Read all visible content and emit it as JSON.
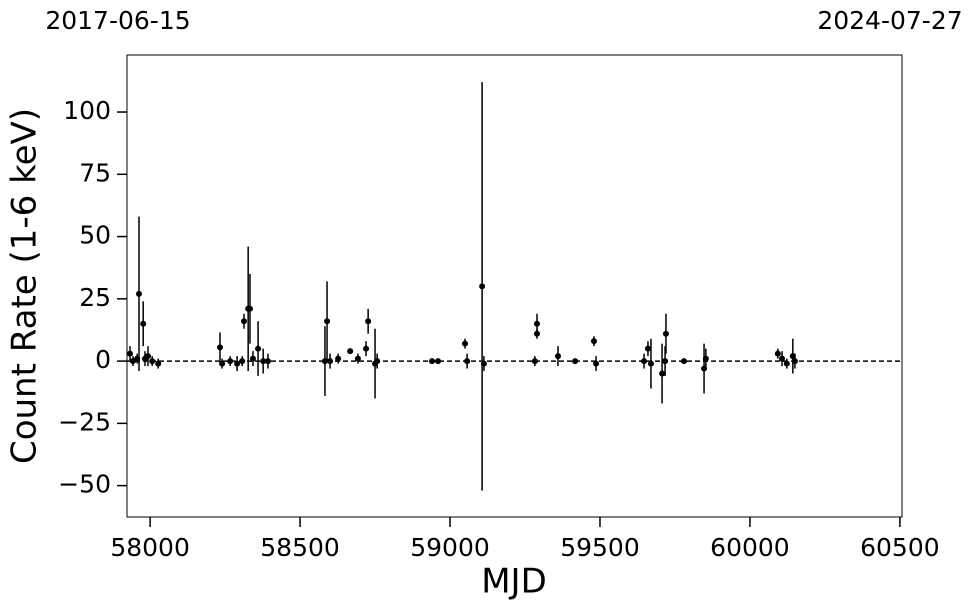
{
  "chart_data": {
    "type": "errorbar",
    "annotations": [
      "2017-06-15",
      "2024-07-27"
    ],
    "xlabel": "MJD",
    "ylabel": "Count Rate (1-6 keV)",
    "xlim": [
      57923,
      60507
    ],
    "ylim": [
      -62.6,
      122.9
    ],
    "xticks": [
      58000,
      58500,
      59000,
      59500,
      60000,
      60500
    ],
    "yticks": [
      {
        "value": -50,
        "label": "−50"
      },
      {
        "value": -25,
        "label": "−25"
      },
      0,
      25,
      50,
      75,
      100
    ],
    "hline": 0,
    "color": "#000000",
    "x": [
      57933,
      57943,
      57957,
      57963,
      57977,
      57983,
      57993,
      58007,
      58027,
      58233,
      58240,
      58267,
      58290,
      58307,
      58313,
      58327,
      58333,
      58343,
      58360,
      58377,
      58393,
      58583,
      58590,
      58600,
      58627,
      58667,
      58693,
      58720,
      58727,
      58750,
      58757,
      58940,
      58960,
      59050,
      59057,
      59107,
      59113,
      59283,
      59290,
      59290,
      59360,
      59417,
      59480,
      59487,
      59647,
      59660,
      59670,
      59707,
      59717,
      59720,
      59780,
      59847,
      59853,
      60093,
      60107,
      60123,
      60143,
      60150
    ],
    "values": [
      3,
      0,
      1,
      27,
      15,
      1,
      2,
      0,
      -1,
      5.5,
      -1,
      0,
      -1,
      0,
      16,
      21,
      21,
      1,
      5,
      0,
      0,
      0,
      16,
      0,
      1,
      4,
      1,
      5,
      16,
      -1,
      0,
      0,
      0,
      7,
      0,
      30,
      -1,
      0,
      11,
      15,
      2,
      0,
      8,
      -1,
      0,
      5,
      -1,
      -5,
      0,
      11,
      0,
      -3,
      1,
      3,
      1,
      -1,
      2,
      0
    ],
    "errors": [
      3,
      2,
      2,
      31,
      9,
      3,
      4,
      2,
      2,
      6,
      2,
      2,
      3,
      2,
      3,
      25,
      14,
      3,
      11,
      5,
      3,
      14,
      16,
      3,
      2,
      1,
      2,
      3,
      5,
      14,
      3,
      1,
      1,
      2,
      3,
      82,
      3,
      2,
      2,
      4,
      4,
      1,
      2,
      3,
      3,
      3,
      10,
      12,
      6,
      8,
      1,
      10,
      4,
      2,
      3,
      2,
      7,
      3
    ]
  }
}
